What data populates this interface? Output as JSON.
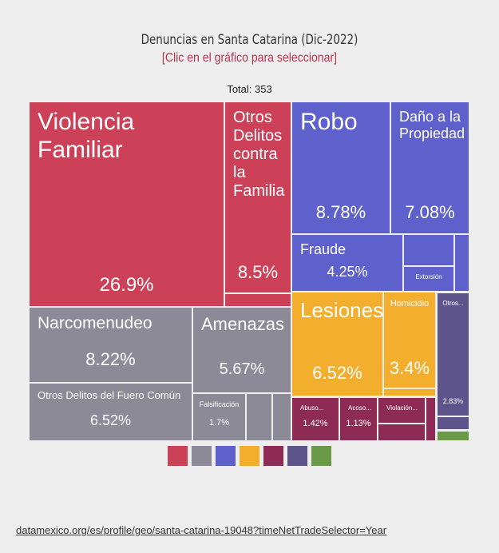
{
  "header": {
    "title": "Denuncias en Santa Catarina (Dic-2022)",
    "subtitle": "[Clic en el gráfico para seleccionar]",
    "total": "Total: 353"
  },
  "chart_data": {
    "type": "treemap",
    "title": "Denuncias en Santa Catarina (Dic-2022)",
    "unit": "percent",
    "items": [
      {
        "name": "Violencia Familiar",
        "group": "red",
        "value": 26.9,
        "label": "26.9%"
      },
      {
        "name": "Otros Delitos contra la Familia",
        "group": "red",
        "value": 8.5,
        "label": "8.5%"
      },
      {
        "name": "Robo",
        "group": "blue",
        "value": 8.78,
        "label": "8.78%"
      },
      {
        "name": "Daño a la Propiedad",
        "group": "blue",
        "value": 7.08,
        "label": "7.08%"
      },
      {
        "name": "Fraude",
        "group": "blue",
        "value": 4.25,
        "label": "4.25%"
      },
      {
        "name": "Extorsión",
        "group": "blue",
        "value": null,
        "label": ""
      },
      {
        "name": "Lesiones",
        "group": "yellow",
        "value": 6.52,
        "label": "6.52%"
      },
      {
        "name": "Homicidio",
        "group": "yellow",
        "value": 3.4,
        "label": "3.4%"
      },
      {
        "name": "Narcomenudeo",
        "group": "gray",
        "value": 8.22,
        "label": "8.22%"
      },
      {
        "name": "Amenazas",
        "group": "gray",
        "value": 5.67,
        "label": "5.67%"
      },
      {
        "name": "Otros Delitos del Fuero Común",
        "group": "gray",
        "value": 6.52,
        "label": "6.52%"
      },
      {
        "name": "Falsificación",
        "group": "gray",
        "value": 1.7,
        "label": "1.7%"
      },
      {
        "name": "Abuso...",
        "group": "maroon",
        "value": 1.42,
        "label": "1.42%"
      },
      {
        "name": "Acoso...",
        "group": "maroon",
        "value": 1.13,
        "label": "1.13%"
      },
      {
        "name": "Violación...",
        "group": "maroon",
        "value": null,
        "label": ""
      },
      {
        "name": "Otros...",
        "group": "purple",
        "value": 2.83,
        "label": "2.83%"
      }
    ],
    "legend": [
      {
        "color": "#cc4158"
      },
      {
        "color": "#8b8a96"
      },
      {
        "color": "#5e60cc"
      },
      {
        "color": "#f4ae2e"
      },
      {
        "color": "#8d2b55"
      },
      {
        "color": "#5e548c"
      },
      {
        "color": "#6a9a48"
      }
    ]
  },
  "colors": {
    "red": "#cc4158",
    "gray": "#8b8a96",
    "blue": "#5e60cc",
    "yellow": "#f4ae2e",
    "maroon": "#8d2b55",
    "purple": "#5e548c",
    "green": "#6a9a48"
  },
  "footer": {
    "source": "datamexico.org/es/profile/geo/santa-catarina-19048?timeNetTradeSelector=Year"
  }
}
